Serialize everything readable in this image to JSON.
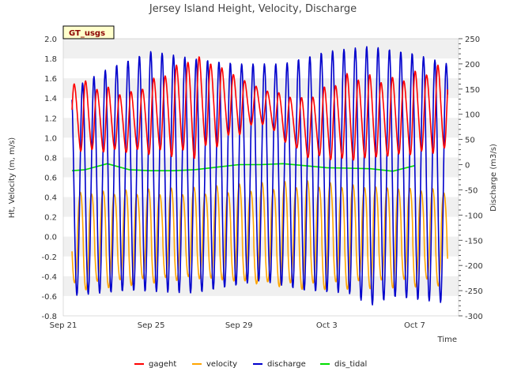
{
  "chart_data": {
    "type": "line",
    "title": "Jersey Island Height, Velocity, Discharge",
    "badge": "GT_usgs",
    "xlabel": "Time",
    "ylabel_left": "Ht, Velocity (m, m/s)",
    "ylabel_right": "Discharge (m3/s)",
    "x_range_days": [
      0,
      18
    ],
    "x_ticks": [
      {
        "day": 0,
        "label": "Sep 21"
      },
      {
        "day": 4,
        "label": "Sep 25"
      },
      {
        "day": 8,
        "label": "Sep 29"
      },
      {
        "day": 12,
        "label": "Oct 3"
      },
      {
        "day": 16,
        "label": "Oct 7"
      }
    ],
    "ylim_left": [
      -0.8,
      2.0
    ],
    "y_ticks_left": [
      "-0.8",
      "-0.6",
      "-0.4",
      "-0.2",
      "0.0",
      "0.2",
      "0.4",
      "0.6",
      "0.8",
      "1.0",
      "1.2",
      "1.4",
      "1.6",
      "1.8",
      "2.0"
    ],
    "ylim_right": [
      -300,
      250
    ],
    "y_ticks_right": [
      "-300",
      "-250",
      "-200",
      "-150",
      "-100",
      "-50",
      "0",
      "50",
      "100",
      "150",
      "200",
      "250"
    ],
    "grid": "horizontal bands",
    "legend": [
      {
        "name": "gageht",
        "color": "#ff0000"
      },
      {
        "name": "velocity",
        "color": "#ffa500"
      },
      {
        "name": "discharge",
        "color": "#0000cc"
      },
      {
        "name": "dis_tidal",
        "color": "#00dd00"
      }
    ],
    "series": [
      {
        "name": "gageht",
        "axis": "left",
        "color": "#ff0000",
        "start_day": 0.4,
        "end_day": 17.5,
        "description": "semi-diurnal tide, estimated envelope",
        "period_days": 0.5175,
        "peaks": [
          [
            0.4,
            1.6
          ],
          [
            3,
            1.45
          ],
          [
            6,
            1.85
          ],
          [
            7,
            1.75
          ],
          [
            9,
            1.5
          ],
          [
            11,
            1.4
          ],
          [
            13,
            1.65
          ],
          [
            15,
            1.6
          ],
          [
            17.5,
            1.75
          ]
        ],
        "troughs": [
          [
            0.4,
            0.85
          ],
          [
            3,
            0.85
          ],
          [
            6,
            0.8
          ],
          [
            9,
            1.15
          ],
          [
            11,
            0.8
          ],
          [
            13,
            0.75
          ],
          [
            15,
            0.8
          ],
          [
            17.5,
            0.85
          ]
        ]
      },
      {
        "name": "velocity",
        "axis": "left",
        "color": "#ffa500",
        "start_day": 0.4,
        "end_day": 17.5,
        "period_days": 0.5175,
        "peaks": [
          [
            0.4,
            0.48
          ],
          [
            6,
            0.5
          ],
          [
            11,
            0.58
          ],
          [
            17.5,
            0.5
          ]
        ],
        "troughs": [
          [
            0.4,
            -0.55
          ],
          [
            6,
            -0.45
          ],
          [
            11,
            -0.55
          ],
          [
            17.5,
            -0.5
          ]
        ]
      },
      {
        "name": "discharge",
        "axis": "right",
        "color": "#0000cc",
        "start_day": 0.4,
        "end_day": 17.5,
        "period_days": 0.5175,
        "peaks": [
          [
            0.4,
            150
          ],
          [
            2,
            190
          ],
          [
            4,
            225
          ],
          [
            6,
            210
          ],
          [
            8,
            200
          ],
          [
            10,
            200
          ],
          [
            12,
            225
          ],
          [
            14,
            235
          ],
          [
            16,
            220
          ],
          [
            17.5,
            200
          ]
        ],
        "troughs": [
          [
            0.4,
            -260
          ],
          [
            3,
            -250
          ],
          [
            6,
            -255
          ],
          [
            9,
            -230
          ],
          [
            11,
            -250
          ],
          [
            13,
            -255
          ],
          [
            14,
            -280
          ],
          [
            15,
            -262
          ],
          [
            17.5,
            -275
          ]
        ]
      },
      {
        "name": "dis_tidal",
        "axis": "right",
        "color": "#00dd00",
        "start_day": 0.4,
        "end_day": 16.0,
        "x": [
          0.4,
          1,
          1.5,
          2,
          3,
          4,
          5,
          6,
          7,
          8,
          9,
          10,
          11,
          12,
          13,
          14,
          15,
          16
        ],
        "values": [
          -12,
          -10,
          -4,
          2,
          -10,
          -12,
          -12,
          -10,
          -5,
          0,
          0,
          2,
          -2,
          -6,
          -7,
          -8,
          -13,
          -2
        ]
      }
    ]
  }
}
